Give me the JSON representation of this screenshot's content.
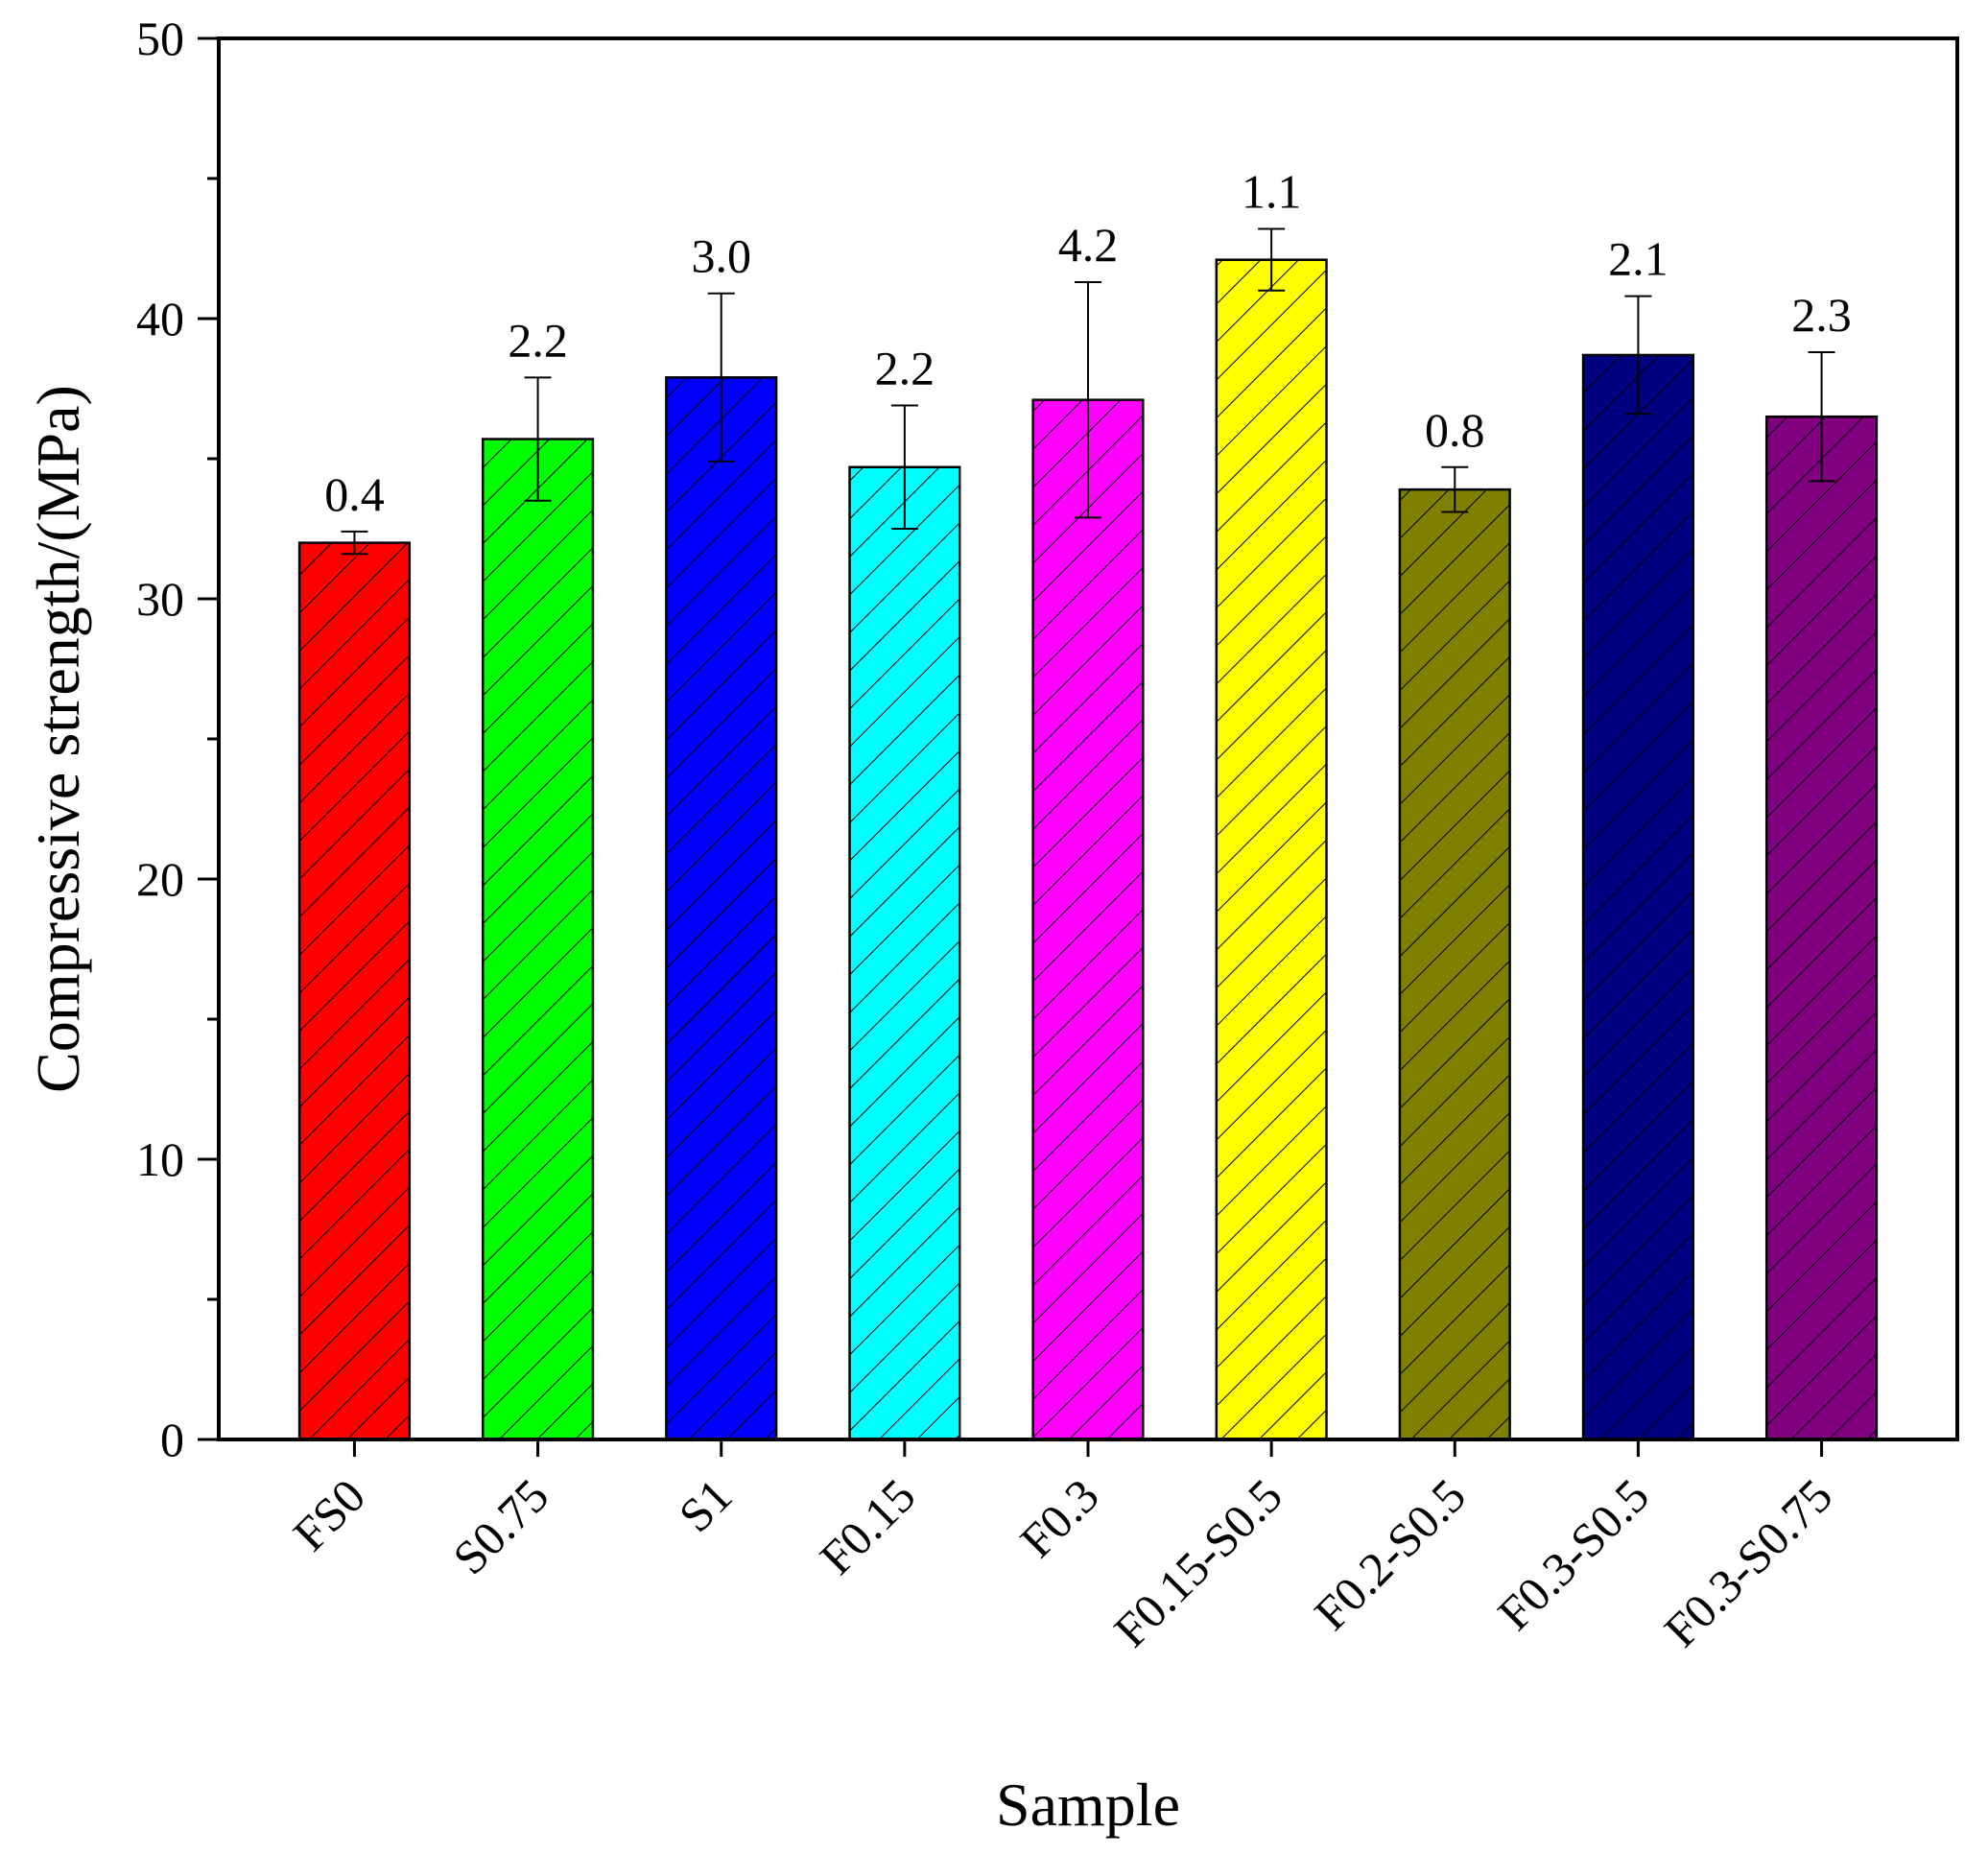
{
  "chart_data": {
    "type": "bar",
    "title": "",
    "xlabel": "Sample",
    "ylabel": "Compressive strength/(MPa)",
    "ylim": [
      0,
      50
    ],
    "yticks": [
      0,
      10,
      20,
      30,
      40,
      50
    ],
    "grid": false,
    "legend": "none",
    "categories": [
      "FS0",
      "S0.75",
      "S1",
      "F0.15",
      "F0.3",
      "F0.15-S0.5",
      "F0.2-S0.5",
      "F0.3-S0.5",
      "F0.3-S0.75"
    ],
    "values": [
      32.0,
      35.7,
      37.9,
      34.7,
      37.1,
      42.1,
      33.9,
      38.7,
      36.5
    ],
    "errors": [
      0.4,
      2.2,
      3.0,
      2.2,
      4.2,
      1.1,
      0.8,
      2.1,
      2.3
    ],
    "error_labels": [
      "0.4",
      "2.2",
      "3.0",
      "2.2",
      "4.2",
      "1.1",
      "0.8",
      "2.1",
      "2.3"
    ],
    "colors": [
      "#ff0000",
      "#00ff00",
      "#0000ff",
      "#00ffff",
      "#ff00ff",
      "#ffff00",
      "#808000",
      "#000080",
      "#800080"
    ],
    "pattern": "diagonal-hatch"
  }
}
